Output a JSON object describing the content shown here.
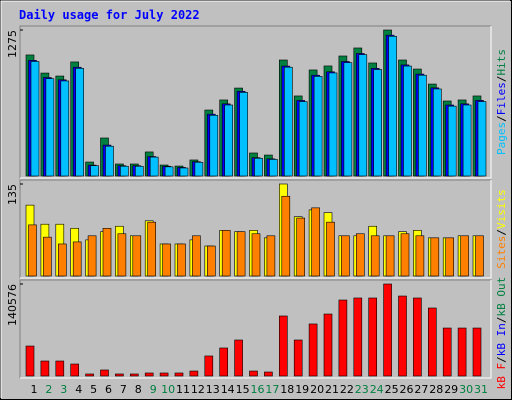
{
  "chart_data": [
    {
      "type": "bar",
      "title": "Daily usage for July 2022",
      "ylim": [
        0,
        1275
      ],
      "yticks": [
        1275
      ],
      "legend_separator": "/",
      "series": [
        {
          "name": "Hits",
          "color": "#008040",
          "values": [
            1057,
            899,
            873,
            996,
            122,
            332,
            105,
            105,
            210,
            96,
            87,
            140,
            576,
            664,
            768,
            201,
            183,
            1013,
            699,
            926,
            961,
            1048,
            1118,
            987,
            1275,
            1013,
            934,
            803,
            655,
            664,
            699
          ]
        },
        {
          "name": "Files",
          "color": "#0000ff",
          "values": [
            1010,
            860,
            840,
            950,
            95,
            270,
            90,
            90,
            170,
            85,
            75,
            125,
            540,
            630,
            740,
            160,
            150,
            960,
            660,
            880,
            910,
            1000,
            1070,
            940,
            1230,
            970,
            890,
            770,
            620,
            630,
            660
          ]
        },
        {
          "name": "Pages",
          "color": "#00c0ff",
          "values": [
            1000,
            850,
            830,
            940,
            90,
            260,
            85,
            85,
            165,
            80,
            70,
            120,
            530,
            620,
            730,
            155,
            145,
            950,
            650,
            870,
            900,
            990,
            1060,
            930,
            1220,
            960,
            880,
            760,
            610,
            620,
            650
          ]
        }
      ]
    },
    {
      "type": "bar",
      "ylim": [
        0,
        135
      ],
      "yticks": [
        135
      ],
      "legend_separator": "/",
      "series": [
        {
          "name": "Visits",
          "color": "#ffff00",
          "values": [
            104,
            76,
            76,
            70,
            53,
            65,
            73,
            59,
            81,
            47,
            47,
            53,
            44,
            67,
            65,
            67,
            56,
            135,
            87,
            97,
            93,
            59,
            59,
            73,
            59,
            65,
            67,
            56,
            56,
            59,
            59
          ]
        },
        {
          "name": "Sites",
          "color": "#ff8000",
          "values": [
            75,
            57,
            47,
            50,
            59,
            70,
            62,
            59,
            79,
            47,
            47,
            59,
            44,
            67,
            65,
            62,
            59,
            117,
            85,
            100,
            79,
            59,
            62,
            59,
            59,
            62,
            59,
            56,
            56,
            59,
            59
          ]
        }
      ]
    },
    {
      "type": "bar",
      "ylim": [
        0,
        140576
      ],
      "yticks": [
        140576
      ],
      "legend_separator": "/",
      "categories": [
        "1",
        "2",
        "3",
        "4",
        "5",
        "6",
        "7",
        "8",
        "9",
        "10",
        "11",
        "12",
        "13",
        "14",
        "15",
        "16",
        "17",
        "18",
        "19",
        "20",
        "21",
        "22",
        "23",
        "24",
        "25",
        "26",
        "27",
        "28",
        "29",
        "30",
        "31"
      ],
      "category_colors": [
        "#000000",
        "#008040",
        "#008040",
        "#000000",
        "#000000",
        "#000000",
        "#000000",
        "#000000",
        "#008040",
        "#008040",
        "#000000",
        "#000000",
        "#000000",
        "#000000",
        "#000000",
        "#008040",
        "#008040",
        "#000000",
        "#000000",
        "#000000",
        "#000000",
        "#000000",
        "#008040",
        "#008040",
        "#000000",
        "#000000",
        "#000000",
        "#000000",
        "#000000",
        "#008040",
        "#008040"
      ],
      "series": [
        {
          "name": "kB F",
          "color": "#ff0000",
          "values": [
            45800,
            22900,
            22900,
            18300,
            3100,
            9200,
            3100,
            3100,
            4600,
            4600,
            4600,
            7600,
            30600,
            42800,
            55000,
            7600,
            6100,
            91700,
            55000,
            79500,
            94700,
            116100,
            119200,
            119200,
            140576,
            122200,
            119200,
            103900,
            73300,
            73300,
            73300
          ]
        }
      ],
      "legend_extra": [
        {
          "name": "kB In",
          "color": "#0000ff"
        },
        {
          "name": "kB Out",
          "color": "#008040"
        }
      ]
    }
  ]
}
